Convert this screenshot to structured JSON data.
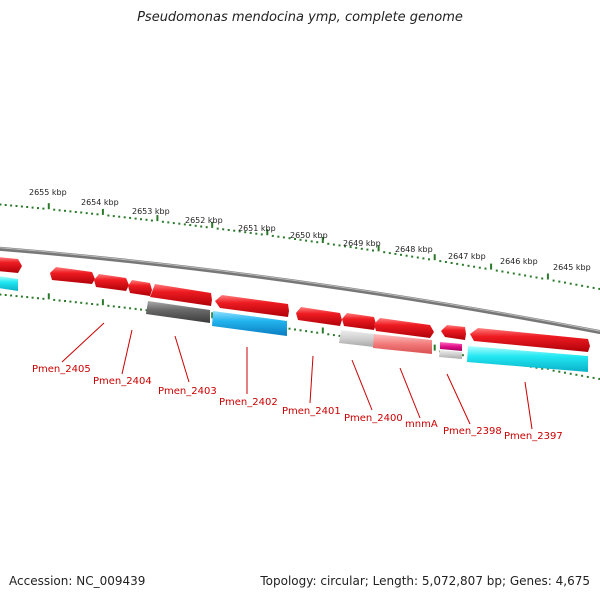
{
  "title": "Pseudomonas mendocina ymp, complete genome",
  "footer": {
    "accession": "Accession: NC_009439",
    "summary": "Topology: circular; Length: 5,072,807 bp; Genes: 4,675"
  },
  "colors": {
    "backbone": "#888888",
    "tick": "#2a7a2a",
    "label": "#cc0000",
    "gene_red": "#e8141b",
    "gene_gray": "#777777",
    "gene_blue": "#1fb7f0",
    "gene_pink": "#f07878",
    "gene_magenta": "#e0108a",
    "gene_lightgray": "#cccccc",
    "gene_cyan": "#22e5f0"
  },
  "kbp_labels": [
    "2655 kbp",
    "2654 kbp",
    "2653 kbp",
    "2652 kbp",
    "2651 kbp",
    "2650 kbp",
    "2649 kbp",
    "2648 kbp",
    "2647 kbp",
    "2646 kbp",
    "2645 kbp"
  ],
  "gene_labels": [
    "Pmen_2405",
    "Pmen_2404",
    "Pmen_2403",
    "Pmen_2402",
    "Pmen_2401",
    "Pmen_2400",
    "mnmA",
    "Pmen_2398",
    "Pmen_2397"
  ]
}
